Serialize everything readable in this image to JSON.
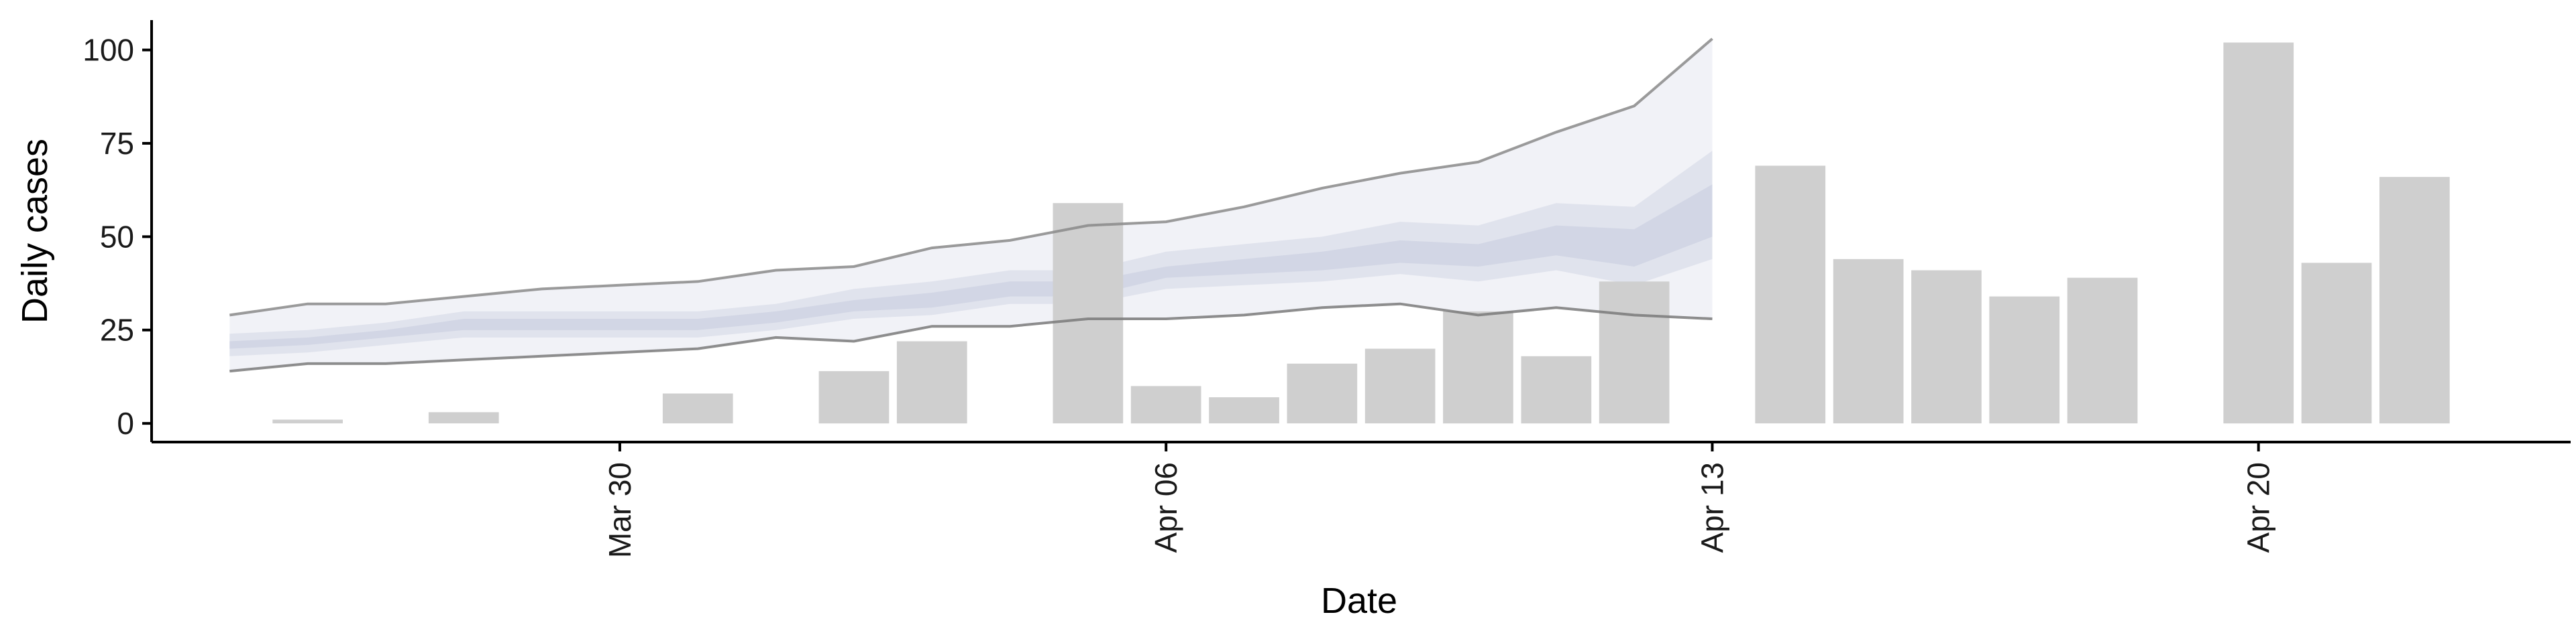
{
  "colors": {
    "bar": "#cfcfcf",
    "band_inner": "#c8cde0",
    "band_mid": "#dcdfea",
    "band_outer": "#eceef4",
    "line_upper": "#8a8a8a",
    "line_lower": "#7a7a7a",
    "axis": "#000000"
  },
  "chart_data": {
    "type": "bar",
    "xlabel": "Date",
    "ylabel": "Daily cases",
    "ylim": [
      -5,
      108
    ],
    "yticks": [
      0,
      25,
      50,
      75,
      100
    ],
    "xticks": [
      {
        "date": "2020-03-30",
        "label": "Mar 30"
      },
      {
        "date": "2020-04-06",
        "label": "Apr 06"
      },
      {
        "date": "2020-04-13",
        "label": "Apr 13"
      },
      {
        "date": "2020-04-20",
        "label": "Apr 20"
      }
    ],
    "xlim": [
      "2020-03-24",
      "2020-04-24"
    ],
    "grid": false,
    "bars": [
      {
        "date": "2020-03-26",
        "value": 1
      },
      {
        "date": "2020-03-28",
        "value": 3
      },
      {
        "date": "2020-03-31",
        "value": 8
      },
      {
        "date": "2020-04-02",
        "value": 14
      },
      {
        "date": "2020-04-03",
        "value": 22
      },
      {
        "date": "2020-04-05",
        "value": 59
      },
      {
        "date": "2020-04-06",
        "value": 10
      },
      {
        "date": "2020-04-07",
        "value": 7
      },
      {
        "date": "2020-04-08",
        "value": 16
      },
      {
        "date": "2020-04-09",
        "value": 20
      },
      {
        "date": "2020-04-10",
        "value": 30
      },
      {
        "date": "2020-04-11",
        "value": 18
      },
      {
        "date": "2020-04-12",
        "value": 38
      },
      {
        "date": "2020-04-14",
        "value": 69
      },
      {
        "date": "2020-04-15",
        "value": 44
      },
      {
        "date": "2020-04-16",
        "value": 41
      },
      {
        "date": "2020-04-17",
        "value": 34
      },
      {
        "date": "2020-04-18",
        "value": 39
      },
      {
        "date": "2020-04-20",
        "value": 102
      },
      {
        "date": "2020-04-21",
        "value": 43
      },
      {
        "date": "2020-04-22",
        "value": 66
      }
    ],
    "estimate": {
      "dates": [
        "2020-03-25",
        "2020-03-26",
        "2020-03-27",
        "2020-03-28",
        "2020-03-29",
        "2020-03-30",
        "2020-03-31",
        "2020-04-01",
        "2020-04-02",
        "2020-04-03",
        "2020-04-04",
        "2020-04-05",
        "2020-04-06",
        "2020-04-07",
        "2020-04-08",
        "2020-04-09",
        "2020-04-10",
        "2020-04-11",
        "2020-04-12",
        "2020-04-13"
      ],
      "outer_upper": [
        29,
        32,
        32,
        34,
        36,
        37,
        38,
        41,
        42,
        47,
        49,
        53,
        54,
        58,
        63,
        67,
        70,
        78,
        85,
        103
      ],
      "outer_lower": [
        14,
        16,
        16,
        17,
        18,
        19,
        20,
        23,
        22,
        26,
        26,
        28,
        28,
        29,
        31,
        32,
        29,
        31,
        29,
        28
      ],
      "mid_upper": [
        24,
        25,
        27,
        30,
        30,
        30,
        30,
        32,
        36,
        38,
        41,
        41,
        46,
        48,
        50,
        54,
        53,
        59,
        58,
        73
      ],
      "mid_lower": [
        18,
        19,
        21,
        23,
        23,
        23,
        23,
        25,
        28,
        29,
        32,
        32,
        36,
        37,
        38,
        40,
        38,
        41,
        37,
        44
      ],
      "inner_upper": [
        22,
        23,
        25,
        28,
        28,
        28,
        28,
        30,
        33,
        35,
        38,
        38,
        42,
        44,
        46,
        49,
        48,
        53,
        52,
        64
      ],
      "inner_lower": [
        20,
        21,
        23,
        25,
        25,
        25,
        25,
        27,
        30,
        31,
        34,
        34,
        39,
        40,
        41,
        43,
        42,
        45,
        42,
        50
      ]
    }
  }
}
